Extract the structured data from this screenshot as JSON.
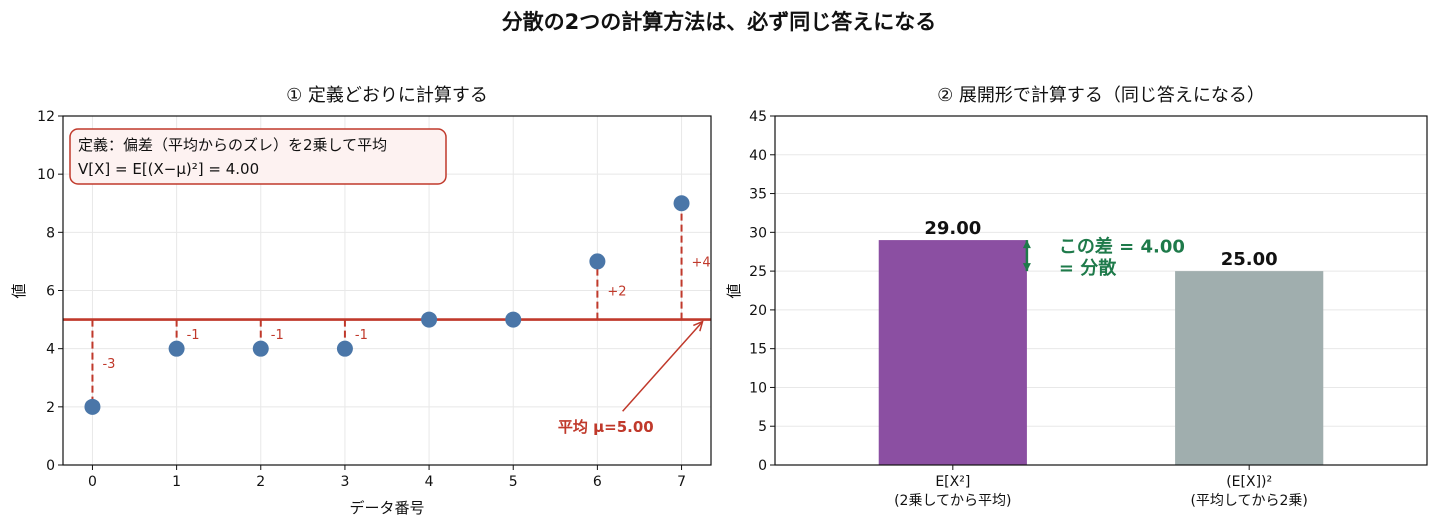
{
  "suptitle": "分散の2つの計算方法は、必ず同じ答えになる",
  "colors": {
    "point": "#4a76a8",
    "mean": "#c0392b",
    "bar_ex2": "#8b4fa2",
    "bar_ex_sq": "#a0aeae",
    "diff": "#1e7a4a",
    "box_fill": "#fdf2f1",
    "box_edge": "#c0392b"
  },
  "chart_data": [
    {
      "type": "scatter",
      "title": "① 定義どおりに計算する",
      "xlabel": "データ番号",
      "ylabel": "値",
      "xlim": [
        -0.35,
        7.35
      ],
      "ylim": [
        0,
        12
      ],
      "x_ticks": [
        0,
        1,
        2,
        3,
        4,
        5,
        6,
        7
      ],
      "y_ticks": [
        0,
        2,
        4,
        6,
        8,
        10,
        12
      ],
      "grid": true,
      "points": [
        {
          "x": 0,
          "y": 2,
          "deviation_label": "-3"
        },
        {
          "x": 1,
          "y": 4,
          "deviation_label": "-1"
        },
        {
          "x": 2,
          "y": 4,
          "deviation_label": "-1"
        },
        {
          "x": 3,
          "y": 4,
          "deviation_label": "-1"
        },
        {
          "x": 4,
          "y": 5,
          "deviation_label": ""
        },
        {
          "x": 5,
          "y": 5,
          "deviation_label": ""
        },
        {
          "x": 6,
          "y": 7,
          "deviation_label": "+2"
        },
        {
          "x": 7,
          "y": 9,
          "deviation_label": "+4"
        }
      ],
      "mean": 5.0,
      "mean_annotation": "平均 μ=5.00",
      "info_box": {
        "line1": "定義：偏差（平均からのズレ）を2乗して平均",
        "line2": "V[X] = E[(X−μ)²] = 4.00"
      }
    },
    {
      "type": "bar",
      "title": "② 展開形で計算する（同じ答えになる）",
      "ylabel": "値",
      "ylim": [
        0,
        45
      ],
      "y_ticks": [
        0,
        5,
        10,
        15,
        20,
        25,
        30,
        35,
        40,
        45
      ],
      "grid": true,
      "categories": [
        {
          "line1": "E[X²]",
          "line2": "(2乗してから平均)"
        },
        {
          "line1": "(E[X])²",
          "line2": "(平均してから2乗)"
        }
      ],
      "values": [
        29.0,
        25.0
      ],
      "value_labels": [
        "29.00",
        "25.00"
      ],
      "difference_annotation": {
        "line1": "この差 = 4.00",
        "line2": "= 分散"
      }
    }
  ]
}
